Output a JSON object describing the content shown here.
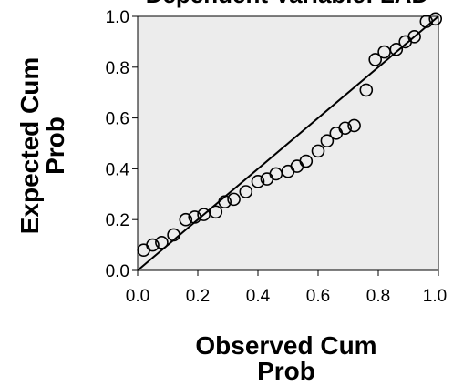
{
  "chart_data": {
    "type": "scatter",
    "title": "Dependent Variable: LAD",
    "xlabel": [
      "Observed Cum",
      "Prob"
    ],
    "ylabel": [
      "Expected Cum",
      "Prob"
    ],
    "xlim": [
      0.0,
      1.0
    ],
    "ylim": [
      0.0,
      1.0
    ],
    "x_ticks": [
      "0.0",
      "0.2",
      "0.4",
      "0.6",
      "0.8",
      "1.0"
    ],
    "y_ticks": [
      "0.0",
      "0.2",
      "0.4",
      "0.6",
      "0.8",
      "1.0"
    ],
    "grid": false,
    "reference_line": {
      "from": [
        0.0,
        0.0
      ],
      "to": [
        1.0,
        1.0
      ]
    },
    "plot_background": "#ececec",
    "marker_color": "#000000",
    "points": [
      {
        "x": 0.02,
        "y": 0.08
      },
      {
        "x": 0.05,
        "y": 0.1
      },
      {
        "x": 0.08,
        "y": 0.11
      },
      {
        "x": 0.12,
        "y": 0.14
      },
      {
        "x": 0.16,
        "y": 0.2
      },
      {
        "x": 0.19,
        "y": 0.21
      },
      {
        "x": 0.22,
        "y": 0.22
      },
      {
        "x": 0.26,
        "y": 0.23
      },
      {
        "x": 0.29,
        "y": 0.27
      },
      {
        "x": 0.32,
        "y": 0.28
      },
      {
        "x": 0.36,
        "y": 0.31
      },
      {
        "x": 0.4,
        "y": 0.35
      },
      {
        "x": 0.43,
        "y": 0.36
      },
      {
        "x": 0.46,
        "y": 0.38
      },
      {
        "x": 0.5,
        "y": 0.39
      },
      {
        "x": 0.53,
        "y": 0.41
      },
      {
        "x": 0.56,
        "y": 0.43
      },
      {
        "x": 0.6,
        "y": 0.47
      },
      {
        "x": 0.63,
        "y": 0.51
      },
      {
        "x": 0.66,
        "y": 0.54
      },
      {
        "x": 0.69,
        "y": 0.56
      },
      {
        "x": 0.72,
        "y": 0.57
      },
      {
        "x": 0.76,
        "y": 0.71
      },
      {
        "x": 0.79,
        "y": 0.83
      },
      {
        "x": 0.82,
        "y": 0.86
      },
      {
        "x": 0.86,
        "y": 0.87
      },
      {
        "x": 0.89,
        "y": 0.9
      },
      {
        "x": 0.92,
        "y": 0.92
      },
      {
        "x": 0.96,
        "y": 0.98
      },
      {
        "x": 0.99,
        "y": 0.99
      }
    ]
  }
}
